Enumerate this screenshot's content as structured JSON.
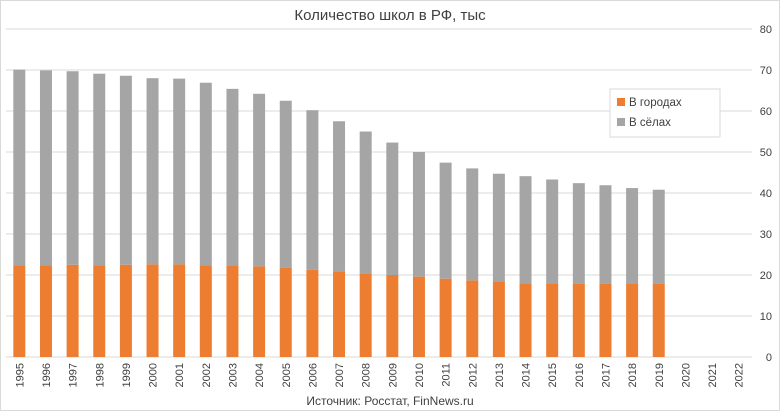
{
  "chart_data": {
    "type": "bar",
    "stacked": true,
    "title": "Количество школ в РФ, тыс",
    "source": "Источник: Росстат, FinNews.ru",
    "categories": [
      "1995",
      "1996",
      "1997",
      "1998",
      "1999",
      "2000",
      "2001",
      "2002",
      "2003",
      "2004",
      "2005",
      "2006",
      "2007",
      "2008",
      "2009",
      "2010",
      "2011",
      "2012",
      "2013",
      "2014",
      "2015",
      "2016",
      "2017",
      "2018",
      "2019",
      "2020",
      "2021",
      "2022"
    ],
    "ylim": [
      0,
      80
    ],
    "yticks": [
      0,
      10,
      20,
      30,
      40,
      50,
      60,
      70,
      80
    ],
    "y_axis_position": "right",
    "grid": true,
    "legend_position": "top-right",
    "series": [
      {
        "name": "В городах",
        "color": "#ed7d31",
        "values": [
          22.3,
          22.4,
          22.5,
          22.4,
          22.5,
          22.6,
          22.6,
          22.4,
          22.3,
          22.1,
          21.8,
          21.3,
          20.9,
          20.4,
          20.0,
          19.6,
          19.1,
          18.7,
          18.3,
          18.0,
          18.0,
          17.9,
          17.9,
          17.8,
          17.9,
          null,
          null,
          null
        ]
      },
      {
        "name": "В сёлах",
        "color": "#a5a5a5",
        "values": [
          47.8,
          47.5,
          47.2,
          46.7,
          46.1,
          45.4,
          45.3,
          44.5,
          43.1,
          42.1,
          40.7,
          38.9,
          36.6,
          34.6,
          32.3,
          30.4,
          28.3,
          27.3,
          26.4,
          26.1,
          25.3,
          24.5,
          24.0,
          23.4,
          22.9,
          null,
          null,
          null
        ]
      }
    ]
  }
}
